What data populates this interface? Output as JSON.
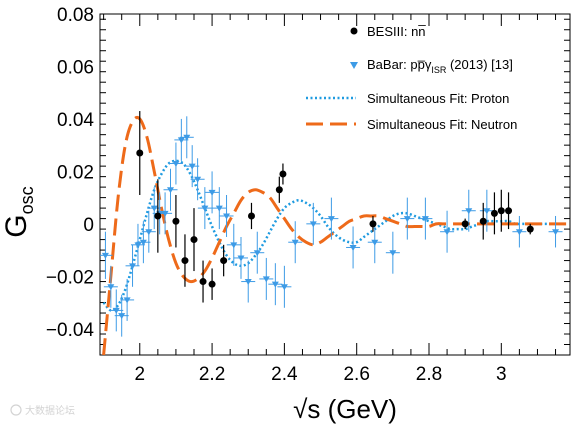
{
  "chart_data": {
    "type": "scatter",
    "xlabel": "√s (GeV)",
    "ylabel": "G",
    "ylabel_sub": "osc",
    "xlim": [
      1.89,
      3.19
    ],
    "ylim": [
      -0.05,
      0.08
    ],
    "x_ticks": [
      2,
      2.2,
      2.4,
      2.6,
      2.8,
      3
    ],
    "x_tick_labels": [
      "2",
      "2.2",
      "2.4",
      "2.6",
      "2.8",
      "3"
    ],
    "y_ticks": [
      -0.04,
      -0.02,
      0,
      0.02,
      0.04,
      0.06,
      0.08
    ],
    "y_tick_labels": [
      "−0.04",
      "−0.02",
      "0",
      "0.02",
      "0.04",
      "0.06",
      "0.08"
    ],
    "legend_position": "top-right",
    "legend": [
      {
        "label": "BESIII: nn̅"
      },
      {
        "label": "BaBar: pp̅γ",
        "label_sub": "ISR",
        "label_tail": " (2013) [13]"
      },
      {
        "label": "Simultaneous Fit: Proton"
      },
      {
        "label": "Simultaneous Fit: Neutron"
      }
    ],
    "colors": {
      "besiii": "#000000",
      "babar": "#3d9be6",
      "proton_fit": "#1f9be0",
      "neutron_fit": "#ee6a1a"
    },
    "series": [
      {
        "name": "BESIII: nn̅",
        "marker": "circle",
        "points": [
          {
            "x": 2.0,
            "y": 0.027,
            "err": 0.016
          },
          {
            "x": 2.05,
            "y": 0.003,
            "err": 0.014
          },
          {
            "x": 2.1,
            "y": 0.001,
            "err": 0.01
          },
          {
            "x": 2.125,
            "y": -0.014,
            "err": 0.01
          },
          {
            "x": 2.15,
            "y": -0.006,
            "err": 0.012
          },
          {
            "x": 2.175,
            "y": -0.022,
            "err": 0.008
          },
          {
            "x": 2.2,
            "y": -0.023,
            "err": 0.006
          },
          {
            "x": 2.232,
            "y": -0.014,
            "err": 0.006
          },
          {
            "x": 2.309,
            "y": 0.003,
            "err": 0.005
          },
          {
            "x": 2.386,
            "y": 0.013,
            "err": 0.005
          },
          {
            "x": 2.396,
            "y": 0.019,
            "err": 0.004
          },
          {
            "x": 2.645,
            "y": 0.0,
            "err": 0.003
          },
          {
            "x": 2.9,
            "y": 0.0,
            "err": 0.002
          },
          {
            "x": 2.95,
            "y": 0.001,
            "err": 0.007
          },
          {
            "x": 2.981,
            "y": 0.004,
            "err": 0.008
          },
          {
            "x": 3.0,
            "y": 0.005,
            "err": 0.008
          },
          {
            "x": 3.02,
            "y": 0.005,
            "err": 0.007
          },
          {
            "x": 3.08,
            "y": -0.002,
            "err": 0.002
          }
        ]
      },
      {
        "name": "BaBar: pp̅γISR (2013) [13]",
        "marker": "triangle-down",
        "points": [
          {
            "x": 1.905,
            "y": -0.012,
            "err": 0.009
          },
          {
            "x": 1.92,
            "y": -0.024,
            "err": 0.008
          },
          {
            "x": 1.935,
            "y": -0.033,
            "err": 0.008
          },
          {
            "x": 1.95,
            "y": -0.035,
            "err": 0.008
          },
          {
            "x": 1.965,
            "y": -0.029,
            "err": 0.008
          },
          {
            "x": 1.98,
            "y": -0.016,
            "err": 0.008
          },
          {
            "x": 1.995,
            "y": -0.008,
            "err": 0.008
          },
          {
            "x": 2.01,
            "y": -0.007,
            "err": 0.008
          },
          {
            "x": 2.025,
            "y": -0.003,
            "err": 0.008
          },
          {
            "x": 2.04,
            "y": 0.006,
            "err": 0.008
          },
          {
            "x": 2.055,
            "y": 0.004,
            "err": 0.008
          },
          {
            "x": 2.07,
            "y": 0.004,
            "err": 0.008
          },
          {
            "x": 2.085,
            "y": 0.013,
            "err": 0.008
          },
          {
            "x": 2.1,
            "y": 0.023,
            "err": 0.008
          },
          {
            "x": 2.115,
            "y": 0.032,
            "err": 0.008
          },
          {
            "x": 2.13,
            "y": 0.033,
            "err": 0.008
          },
          {
            "x": 2.145,
            "y": 0.022,
            "err": 0.008
          },
          {
            "x": 2.16,
            "y": 0.017,
            "err": 0.008
          },
          {
            "x": 2.18,
            "y": 0.006,
            "err": 0.008
          },
          {
            "x": 2.2,
            "y": 0.012,
            "err": 0.008
          },
          {
            "x": 2.22,
            "y": 0.006,
            "err": 0.008
          },
          {
            "x": 2.24,
            "y": 0.003,
            "err": 0.008
          },
          {
            "x": 2.26,
            "y": -0.008,
            "err": 0.008
          },
          {
            "x": 2.28,
            "y": -0.013,
            "err": 0.008
          },
          {
            "x": 2.3,
            "y": -0.022,
            "err": 0.008
          },
          {
            "x": 2.325,
            "y": -0.011,
            "err": 0.008
          },
          {
            "x": 2.35,
            "y": -0.021,
            "err": 0.008
          },
          {
            "x": 2.375,
            "y": -0.023,
            "err": 0.008
          },
          {
            "x": 2.4,
            "y": -0.024,
            "err": 0.008
          },
          {
            "x": 2.43,
            "y": -0.007,
            "err": 0.008
          },
          {
            "x": 2.48,
            "y": 0.0,
            "err": 0.008
          },
          {
            "x": 2.53,
            "y": 0.002,
            "err": 0.008
          },
          {
            "x": 2.59,
            "y": -0.009,
            "err": 0.008
          },
          {
            "x": 2.65,
            "y": -0.007,
            "err": 0.008
          },
          {
            "x": 2.7,
            "y": -0.011,
            "err": 0.008
          },
          {
            "x": 2.74,
            "y": 0.002,
            "err": 0.008
          },
          {
            "x": 2.79,
            "y": 0.002,
            "err": 0.008
          },
          {
            "x": 2.85,
            "y": -0.003,
            "err": 0.008
          },
          {
            "x": 2.91,
            "y": 0.005,
            "err": 0.008
          },
          {
            "x": 2.96,
            "y": 0.005,
            "err": 0.008
          },
          {
            "x": 3.05,
            "y": -0.003,
            "err": 0.006
          },
          {
            "x": 3.15,
            "y": -0.003,
            "err": 0.006
          }
        ]
      },
      {
        "name": "Simultaneous Fit: Proton",
        "style": "dotted",
        "x": [
          1.9,
          1.92,
          1.94,
          1.96,
          1.98,
          2.0,
          2.02,
          2.04,
          2.06,
          2.08,
          2.1,
          2.12,
          2.14,
          2.16,
          2.18,
          2.2,
          2.22,
          2.24,
          2.26,
          2.28,
          2.3,
          2.32,
          2.34,
          2.36,
          2.38,
          2.4,
          2.42,
          2.44,
          2.46,
          2.48,
          2.5,
          2.52,
          2.54,
          2.56,
          2.58,
          2.6,
          2.62,
          2.64,
          2.66,
          2.68,
          2.7,
          2.72,
          2.74,
          2.76,
          2.78,
          2.8,
          2.82,
          2.84,
          2.86,
          2.88,
          2.9,
          2.92,
          2.94,
          2.96,
          2.98,
          3.0,
          3.02,
          3.04,
          3.06,
          3.08,
          3.1,
          3.12,
          3.14,
          3.16,
          3.18
        ],
        "y": [
          -0.03,
          -0.033,
          -0.031,
          -0.025,
          -0.016,
          -0.006,
          0.004,
          0.013,
          0.019,
          0.023,
          0.024,
          0.023,
          0.019,
          0.013,
          0.006,
          -0.001,
          -0.007,
          -0.012,
          -0.015,
          -0.016,
          -0.015,
          -0.012,
          -0.008,
          -0.003,
          0.002,
          0.006,
          0.008,
          0.009,
          0.008,
          0.006,
          0.003,
          -0.001,
          -0.004,
          -0.006,
          -0.007,
          -0.007,
          -0.005,
          -0.003,
          -0.001,
          0.001,
          0.003,
          0.004,
          0.004,
          0.003,
          0.002,
          0.001,
          0.0,
          -0.001,
          -0.002,
          -0.002,
          -0.002,
          -0.001,
          0.0,
          0.001,
          0.001,
          0.001,
          0.001,
          0.0,
          0.0,
          0.0,
          0.0,
          0.0,
          0.0,
          0.0,
          0.0
        ]
      },
      {
        "name": "Simultaneous Fit: Neutron",
        "style": "dashed",
        "x": [
          1.9,
          1.92,
          1.94,
          1.96,
          1.98,
          2.0,
          2.02,
          2.04,
          2.06,
          2.08,
          2.1,
          2.12,
          2.14,
          2.16,
          2.18,
          2.2,
          2.22,
          2.24,
          2.26,
          2.28,
          2.3,
          2.32,
          2.34,
          2.36,
          2.38,
          2.4,
          2.42,
          2.44,
          2.46,
          2.48,
          2.5,
          2.52,
          2.54,
          2.56,
          2.58,
          2.6,
          2.62,
          2.64,
          2.66,
          2.68,
          2.7,
          2.72,
          2.74,
          2.76,
          2.78,
          2.8,
          2.82,
          2.84,
          2.86,
          2.88,
          2.9,
          2.92,
          2.94,
          2.96,
          2.98,
          3.0,
          3.02,
          3.04,
          3.06,
          3.08,
          3.1,
          3.12,
          3.14,
          3.16,
          3.18
        ],
        "y": [
          -0.05,
          -0.02,
          0.01,
          0.03,
          0.039,
          0.04,
          0.033,
          0.02,
          0.006,
          -0.006,
          -0.015,
          -0.02,
          -0.022,
          -0.021,
          -0.018,
          -0.013,
          -0.007,
          -0.001,
          0.004,
          0.009,
          0.012,
          0.013,
          0.012,
          0.01,
          0.006,
          0.002,
          -0.002,
          -0.005,
          -0.007,
          -0.008,
          -0.007,
          -0.005,
          -0.003,
          -0.001,
          0.001,
          0.002,
          0.003,
          0.003,
          0.003,
          0.002,
          0.001,
          0.0,
          -0.001,
          -0.001,
          -0.001,
          -0.001,
          0.0,
          0.0,
          0.0,
          0.0,
          0.0,
          0.0,
          0.0,
          0.0,
          0.0,
          0.0,
          0.0,
          0.0,
          0.0,
          0.0,
          0.0,
          0.0,
          0.0,
          0.0,
          0.0
        ]
      }
    ]
  },
  "watermark": "大数据论坛"
}
